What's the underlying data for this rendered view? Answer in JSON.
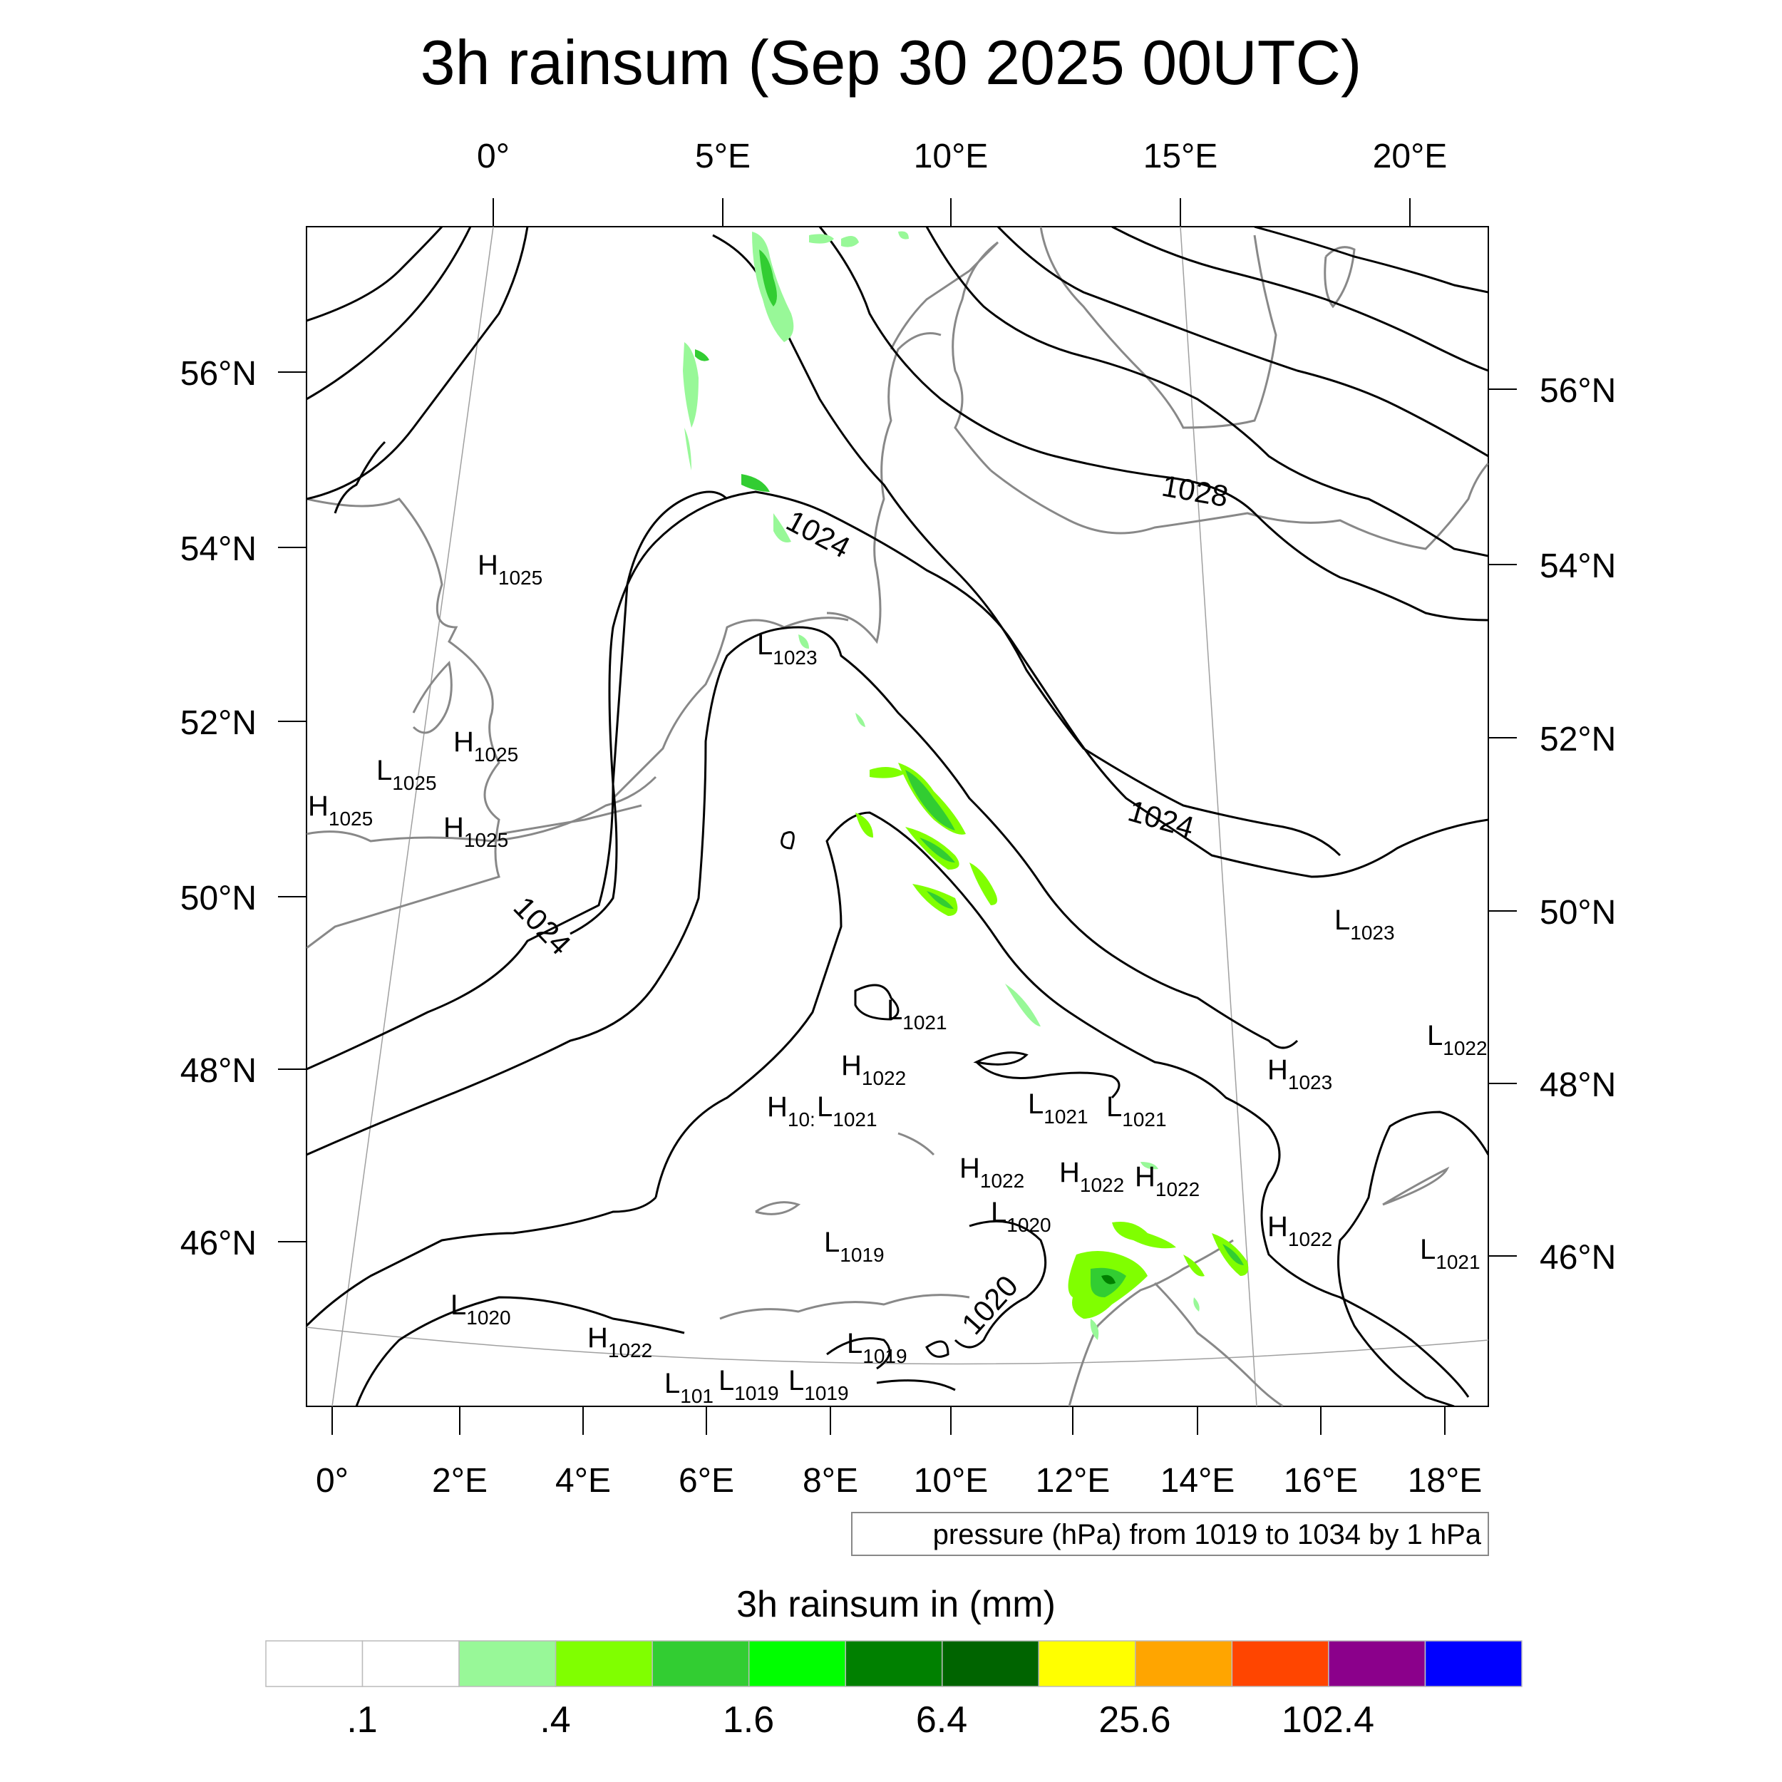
{
  "title": "3h rainsum (Sep 30 2025 00UTC)",
  "top_lon_labels": [
    "0°",
    "5°E",
    "10°E",
    "15°E",
    "20°E"
  ],
  "bottom_lon_labels": [
    "0°",
    "2°E",
    "4°E",
    "6°E",
    "8°E",
    "10°E",
    "12°E",
    "14°E",
    "16°E",
    "18°E"
  ],
  "left_lat_labels": [
    "56°N",
    "54°N",
    "52°N",
    "50°N",
    "48°N",
    "46°N"
  ],
  "right_lat_labels": [
    "56°N",
    "54°N",
    "52°N",
    "50°N",
    "48°N",
    "46°N"
  ],
  "isobar_labels": [
    "1024",
    "1028",
    "1024",
    "1024",
    "1020"
  ],
  "pressure_centers": [
    {
      "type": "H",
      "value": "1025"
    },
    {
      "type": "L",
      "value": "1023"
    },
    {
      "type": "H",
      "value": "1025"
    },
    {
      "type": "L",
      "value": "1025"
    },
    {
      "type": "H",
      "value": "1025"
    },
    {
      "type": "H",
      "value": "1025"
    },
    {
      "type": "L",
      "value": "1023"
    },
    {
      "type": "L",
      "value": "1021"
    },
    {
      "type": "H",
      "value": "1022"
    },
    {
      "type": "H",
      "value": "10:"
    },
    {
      "type": "L",
      "value": "1021"
    },
    {
      "type": "L",
      "value": "1021"
    },
    {
      "type": "L",
      "value": "1021"
    },
    {
      "type": "H",
      "value": "1023"
    },
    {
      "type": "L",
      "value": "1022"
    },
    {
      "type": "H",
      "value": "1022"
    },
    {
      "type": "H",
      "value": "1022"
    },
    {
      "type": "H",
      "value": "1022"
    },
    {
      "type": "L",
      "value": "1020"
    },
    {
      "type": "L",
      "value": "1019"
    },
    {
      "type": "H",
      "value": "1022"
    },
    {
      "type": "L",
      "value": "1021"
    },
    {
      "type": "L",
      "value": "1020"
    },
    {
      "type": "H",
      "value": "1022"
    },
    {
      "type": "L",
      "value": "1019"
    },
    {
      "type": "L",
      "value": "101"
    },
    {
      "type": "L",
      "value": "1019"
    },
    {
      "type": "L",
      "value": "1019"
    }
  ],
  "contour_note": "pressure (hPa) from 1019 to 1034 by 1 hPa",
  "colorbar": {
    "title": "3h rainsum in (mm)",
    "colors": [
      "#ffffff",
      "#ffffff",
      "#98f898",
      "#80ff00",
      "#32cd32",
      "#00ff00",
      "#008000",
      "#006400",
      "#ffff00",
      "#ffa500",
      "#ff4500",
      "#8b008b",
      "#0000ff"
    ],
    "labels": [
      ".1",
      ".4",
      "1.6",
      "6.4",
      "25.6",
      "102.4"
    ]
  },
  "colors": {
    "rain_light": "#98f898",
    "rain_mid": "#32cd32",
    "rain_bright": "#00ff00",
    "rain_dark": "#008000",
    "coast": "#888888",
    "isobar": "#000000"
  }
}
